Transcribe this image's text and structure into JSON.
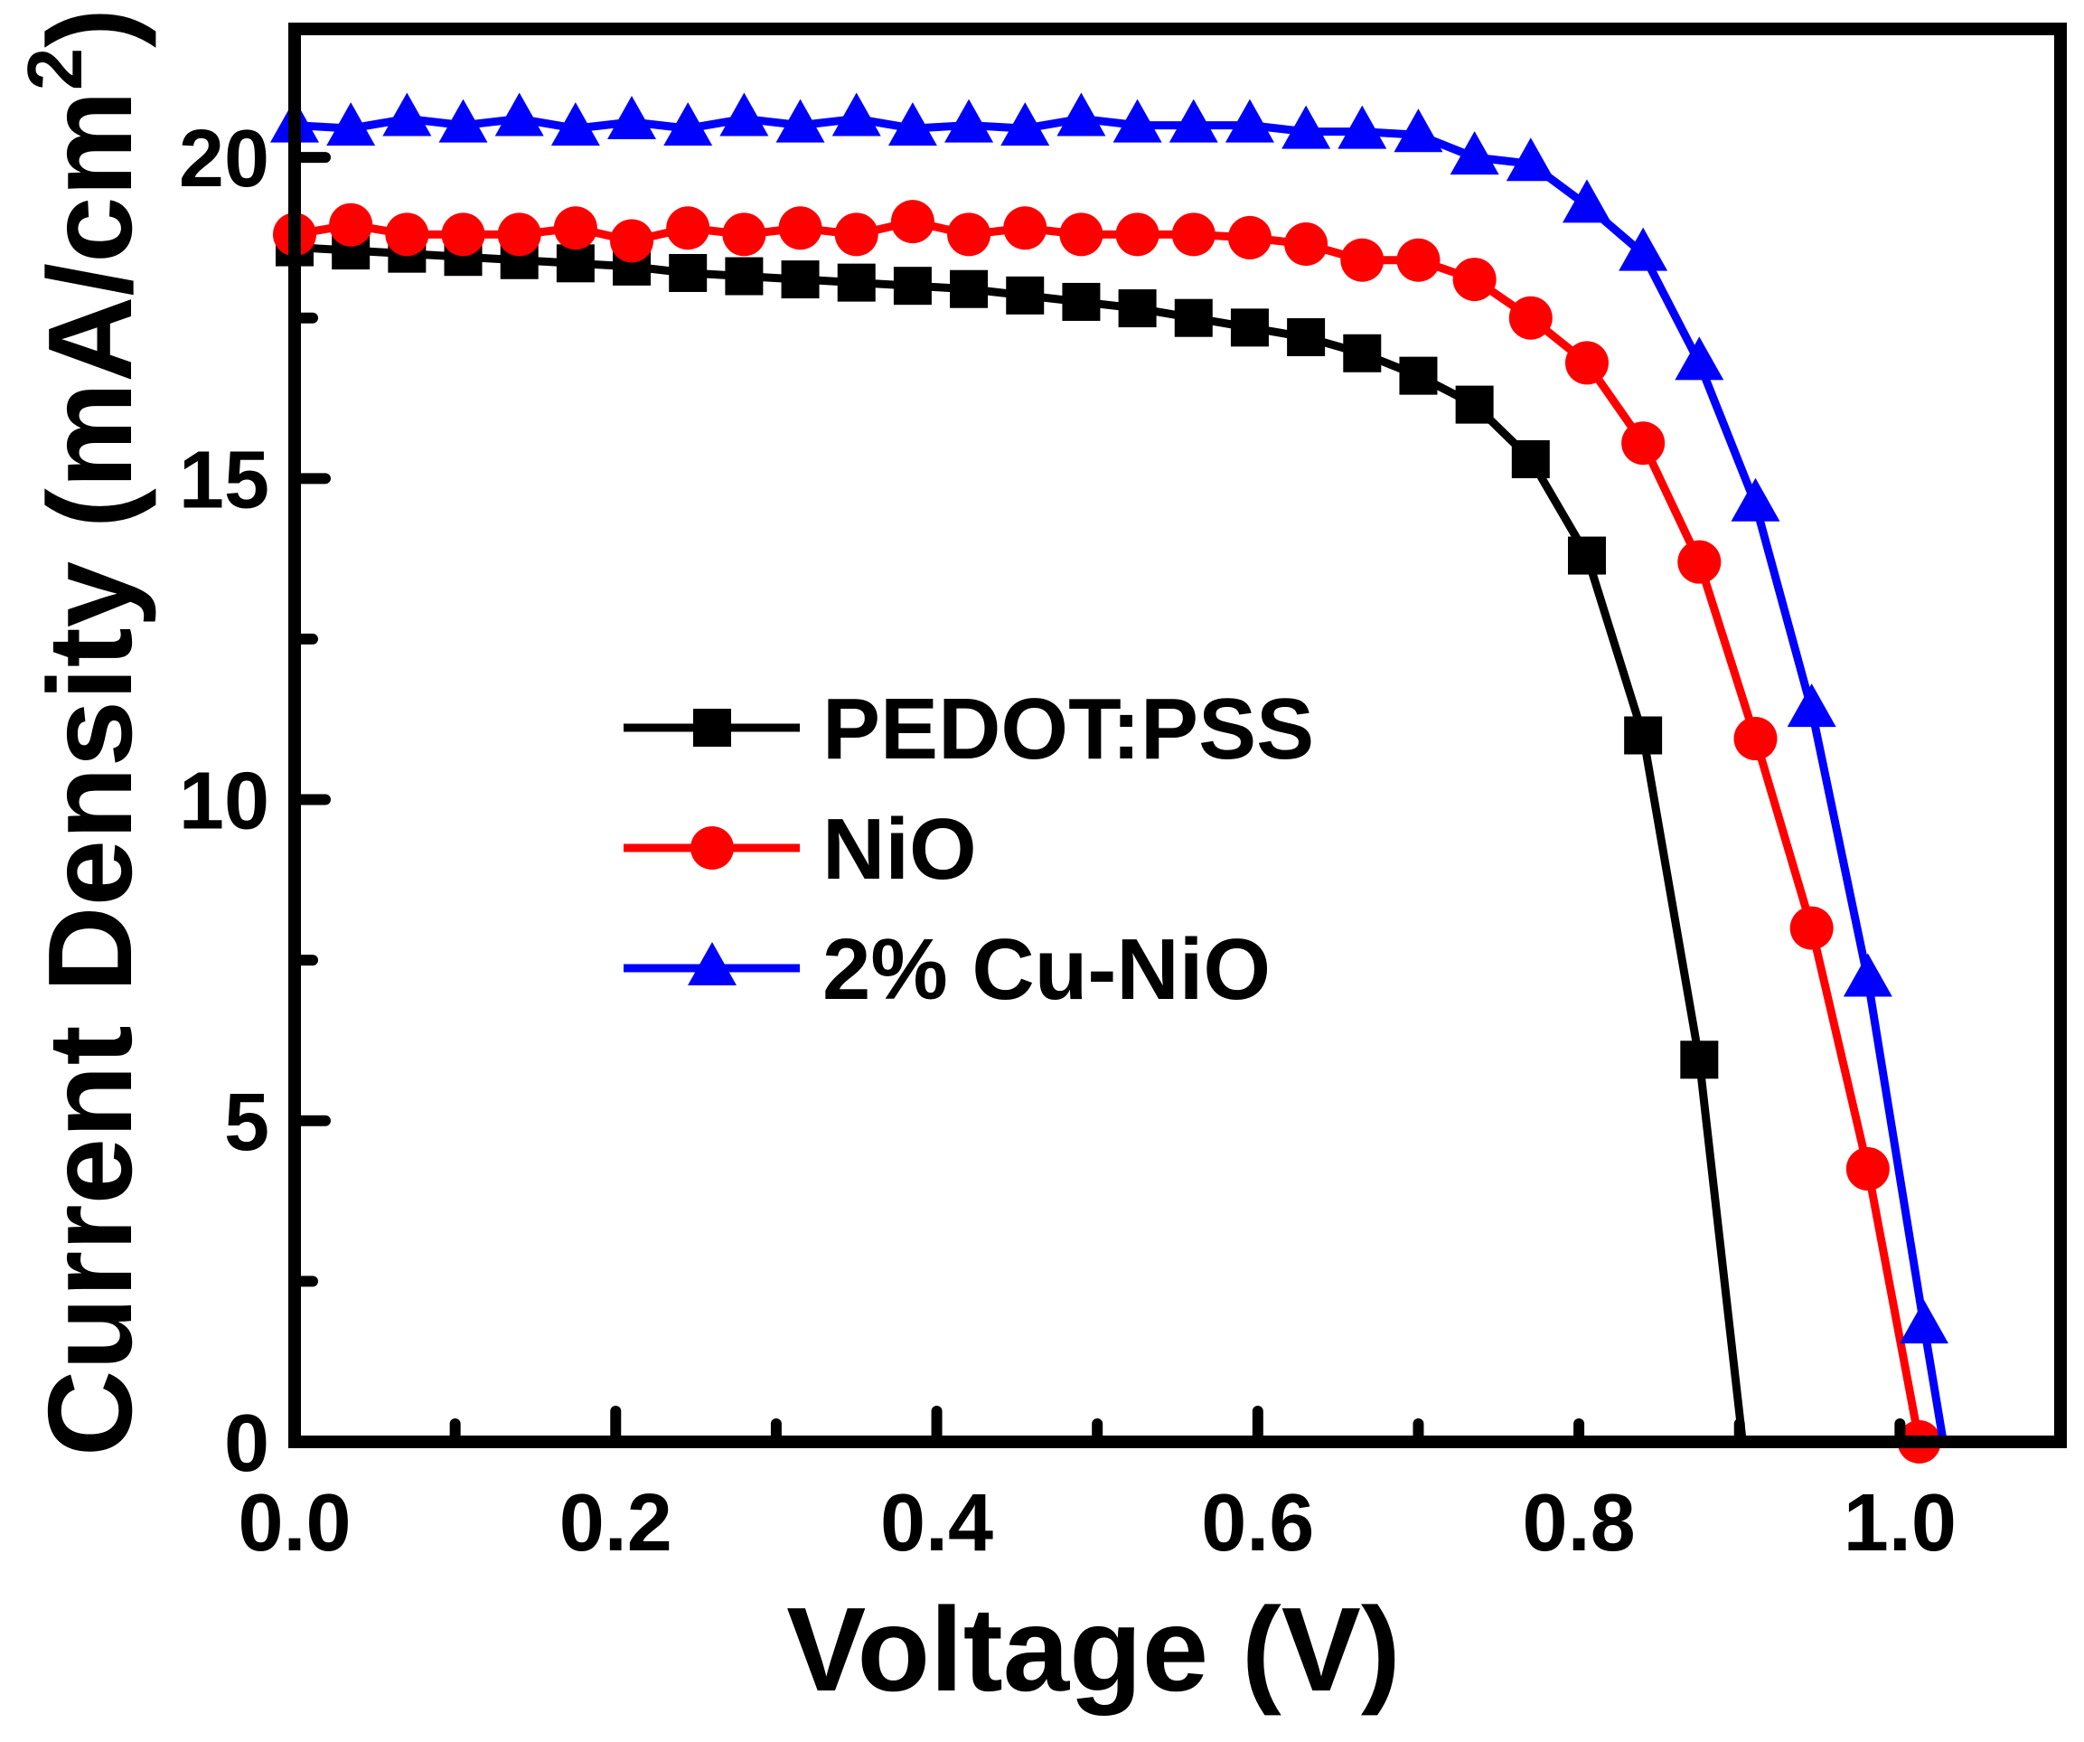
{
  "chart_data": {
    "type": "line",
    "title": "",
    "xlabel": "Voltage (V)",
    "ylabel_main": "Current Density (mA/cm",
    "ylabel_sup": "2",
    "ylabel_close": ")",
    "xlim": [
      0,
      1.1
    ],
    "ylim": [
      0,
      22
    ],
    "xticks": [
      0.0,
      0.2,
      0.4,
      0.6,
      0.8,
      1.0
    ],
    "xtick_labels": [
      "0.0",
      "0.2",
      "0.4",
      "0.6",
      "0.8",
      "1.0"
    ],
    "yticks": [
      0,
      5,
      10,
      15,
      20
    ],
    "ytick_labels": [
      "0",
      "5",
      "10",
      "15",
      "20"
    ],
    "grid": false,
    "legend_position": "center-left",
    "series": [
      {
        "name": "PEDOT:PSS",
        "color": "#000000",
        "marker": "square",
        "x": [
          0.0,
          0.035,
          0.07,
          0.105,
          0.14,
          0.175,
          0.21,
          0.245,
          0.28,
          0.315,
          0.35,
          0.385,
          0.42,
          0.455,
          0.49,
          0.525,
          0.56,
          0.595,
          0.63,
          0.665,
          0.7,
          0.735,
          0.77,
          0.805,
          0.84,
          0.875,
          0.902
        ],
        "y": [
          18.6,
          18.55,
          18.5,
          18.45,
          18.4,
          18.35,
          18.3,
          18.2,
          18.15,
          18.1,
          18.05,
          18.0,
          17.95,
          17.85,
          17.75,
          17.65,
          17.5,
          17.35,
          17.2,
          16.95,
          16.6,
          16.15,
          15.3,
          13.8,
          11.0,
          5.95,
          0.0
        ],
        "marked": 26
      },
      {
        "name": "NiO",
        "color": "#ff0000",
        "marker": "circle",
        "x": [
          0.0,
          0.035,
          0.07,
          0.105,
          0.14,
          0.175,
          0.21,
          0.245,
          0.28,
          0.315,
          0.35,
          0.385,
          0.42,
          0.455,
          0.49,
          0.525,
          0.56,
          0.595,
          0.63,
          0.665,
          0.7,
          0.735,
          0.77,
          0.805,
          0.84,
          0.875,
          0.91,
          0.945,
          0.98,
          1.012
        ],
        "y": [
          18.8,
          18.95,
          18.8,
          18.8,
          18.8,
          18.9,
          18.7,
          18.9,
          18.8,
          18.9,
          18.8,
          19.0,
          18.8,
          18.9,
          18.8,
          18.8,
          18.8,
          18.75,
          18.65,
          18.4,
          18.4,
          18.1,
          17.5,
          16.8,
          15.55,
          13.7,
          10.95,
          8.0,
          4.25,
          0.0
        ],
        "marked": 30
      },
      {
        "name": "2% Cu-NiO",
        "color": "#0000ff",
        "marker": "triangle",
        "x": [
          0.0,
          0.035,
          0.07,
          0.105,
          0.14,
          0.175,
          0.21,
          0.245,
          0.28,
          0.315,
          0.35,
          0.385,
          0.42,
          0.455,
          0.49,
          0.525,
          0.56,
          0.595,
          0.63,
          0.665,
          0.7,
          0.735,
          0.77,
          0.805,
          0.84,
          0.875,
          0.91,
          0.945,
          0.98,
          1.015,
          1.027
        ],
        "y": [
          20.5,
          20.45,
          20.6,
          20.5,
          20.6,
          20.45,
          20.55,
          20.45,
          20.6,
          20.5,
          20.6,
          20.45,
          20.5,
          20.45,
          20.6,
          20.5,
          20.5,
          20.5,
          20.4,
          20.4,
          20.35,
          20.0,
          19.9,
          19.25,
          18.5,
          16.8,
          14.6,
          11.4,
          7.2,
          1.8,
          0.0
        ],
        "marked": 30
      }
    ]
  }
}
